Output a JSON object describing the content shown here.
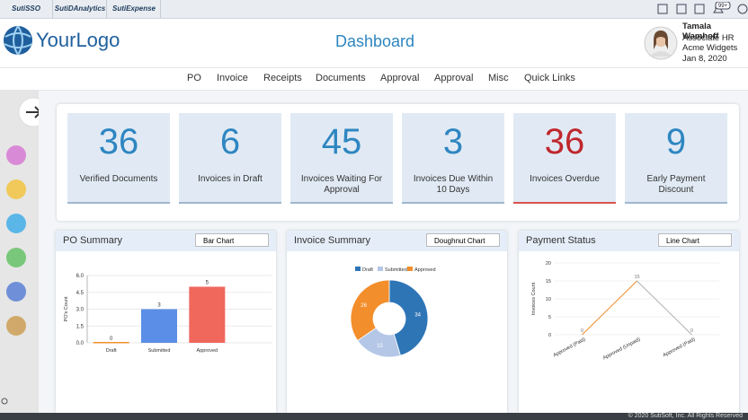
{
  "tabs": [
    "SutiSSO",
    "SutiDAnalytics",
    "SutiExpense"
  ],
  "badge": "99+",
  "header": {
    "logo": "YourLogo",
    "title": "Dashboard",
    "user": {
      "name": "Tamala Wamhoff",
      "role": "Associate HR",
      "company": "Acme Widgets",
      "date": "Jan 8, 2020"
    }
  },
  "nav": [
    "PO",
    "Invoice",
    "Receipts",
    "Documents",
    "Approval",
    "Approval",
    "Misc",
    "Quick Links"
  ],
  "tiles": [
    {
      "value": 36,
      "label": "Verified Documents",
      "color": "#2e86c1"
    },
    {
      "value": 6,
      "label": "Invoices in Draft",
      "color": "#2e86c1"
    },
    {
      "value": 45,
      "label": "Invoices Waiting For Approval",
      "color": "#2e86c1"
    },
    {
      "value": 3,
      "label": "Invoices Due Within 10 Days",
      "color": "#2e86c1"
    },
    {
      "value": 36,
      "label": "Invoices Overdue",
      "color": "#c0272d"
    },
    {
      "value": 9,
      "label": "Early Payment Discount",
      "color": "#2e86c1"
    }
  ],
  "panels": [
    {
      "title": "PO Summary",
      "select": "Bar Chart"
    },
    {
      "title": "Invoice Summary",
      "select": "Doughnut Chart"
    },
    {
      "title": "Payment Status",
      "select": "Line Chart"
    }
  ],
  "chart_data": [
    {
      "type": "bar",
      "y_label": "PO's Count",
      "categories": [
        "Draft",
        "Submitted",
        "Approved"
      ],
      "values": [
        0,
        3,
        5
      ],
      "colors": [
        "#f28e2b",
        "#5b8ee6",
        "#f0675c"
      ],
      "ylim": [
        0,
        6
      ],
      "yticks": [
        {
          "value": 0,
          "label": "0.0"
        },
        1.5,
        {
          "value": 3,
          "label": "3.0"
        },
        4.5,
        {
          "value": 6,
          "label": "6.0"
        }
      ],
      "grid": true
    },
    {
      "type": "doughnut",
      "categories": [
        "Draft",
        "Submitted",
        "Approved"
      ],
      "values": [
        34,
        15,
        26
      ],
      "colors": [
        "#2e75b6",
        "#b4c7e7",
        "#f28e2b"
      ]
    },
    {
      "type": "line",
      "y_label": "Invoices Count",
      "categories": [
        "Approved (Paid)",
        "Approved (Unpaid)",
        "Approved (Paid)"
      ],
      "series": [
        {
          "color": "#f28e2b",
          "values": [
            0,
            15,
            null
          ]
        },
        {
          "color": "#b0b0b0",
          "values": [
            null,
            15,
            0
          ]
        }
      ],
      "ylim": [
        0,
        20
      ],
      "yticks": [
        0,
        5,
        10,
        15,
        20
      ],
      "grid": true
    }
  ],
  "footer": "© 2020 SutiSoft, Inc. All Rights Reserved"
}
